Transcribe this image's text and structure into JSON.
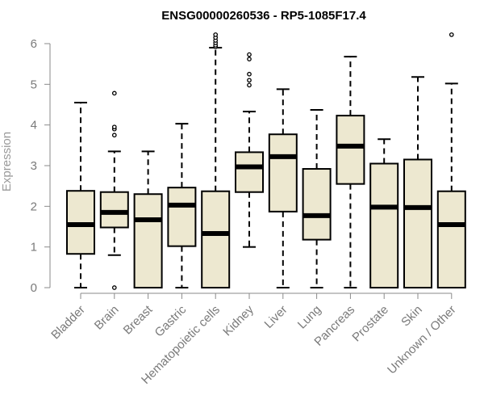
{
  "chart_data": {
    "type": "boxplot",
    "title": "ENSG00000260536 - RP5-1085F17.4",
    "xlabel": "",
    "ylabel": "Expression",
    "ylim": [
      0,
      6
    ],
    "yticks": [
      "0",
      "1",
      "2",
      "3",
      "4",
      "5",
      "6"
    ],
    "grid": false,
    "box_fill": "#ede8d0",
    "categories": [
      "Bladder",
      "Brain",
      "Breast",
      "Gastric",
      "Hematopoietic cells",
      "Kidney",
      "Liver",
      "Lung",
      "Pancreas",
      "Prostate",
      "Skin",
      "Unknown / Other"
    ],
    "boxes": [
      {
        "name": "Bladder",
        "whisker_low": 0,
        "q1": 0.83,
        "median": 1.55,
        "q3": 2.38,
        "whisker_high": 4.55,
        "outliers": []
      },
      {
        "name": "Brain",
        "whisker_low": 0.8,
        "q1": 1.48,
        "median": 1.85,
        "q3": 2.35,
        "whisker_high": 3.35,
        "outliers": [
          0,
          3.75,
          3.9,
          3.95,
          4.78
        ]
      },
      {
        "name": "Breast",
        "whisker_low": 0,
        "q1": 0,
        "median": 1.67,
        "q3": 2.3,
        "whisker_high": 3.35,
        "outliers": []
      },
      {
        "name": "Gastric",
        "whisker_low": 0,
        "q1": 1.02,
        "median": 2.03,
        "q3": 2.46,
        "whisker_high": 4.03,
        "outliers": []
      },
      {
        "name": "Hematopoietic cells",
        "whisker_low": 0,
        "q1": 0,
        "median": 1.33,
        "q3": 2.37,
        "whisker_high": 5.9,
        "outliers": [
          5.92,
          5.96,
          6.02,
          6.08,
          6.15,
          6.22
        ]
      },
      {
        "name": "Kidney",
        "whisker_low": 1.0,
        "q1": 2.35,
        "median": 2.97,
        "q3": 3.33,
        "whisker_high": 4.33,
        "outliers": [
          4.98,
          5.1,
          5.25,
          5.62,
          5.73
        ]
      },
      {
        "name": "Liver",
        "whisker_low": 0,
        "q1": 1.87,
        "median": 3.22,
        "q3": 3.77,
        "whisker_high": 4.88,
        "outliers": []
      },
      {
        "name": "Lung",
        "whisker_low": 0,
        "q1": 1.18,
        "median": 1.77,
        "q3": 2.92,
        "whisker_high": 4.37,
        "outliers": []
      },
      {
        "name": "Pancreas",
        "whisker_low": 0,
        "q1": 2.55,
        "median": 3.48,
        "q3": 4.23,
        "whisker_high": 5.68,
        "outliers": []
      },
      {
        "name": "Prostate",
        "whisker_low": 0,
        "q1": 0,
        "median": 1.98,
        "q3": 3.05,
        "whisker_high": 3.65,
        "outliers": []
      },
      {
        "name": "Skin",
        "whisker_low": 0,
        "q1": 0,
        "median": 1.97,
        "q3": 3.15,
        "whisker_high": 5.18,
        "outliers": []
      },
      {
        "name": "Unknown / Other",
        "whisker_low": 0,
        "q1": 0,
        "median": 1.55,
        "q3": 2.37,
        "whisker_high": 5.02,
        "outliers": [
          6.22
        ]
      }
    ]
  }
}
